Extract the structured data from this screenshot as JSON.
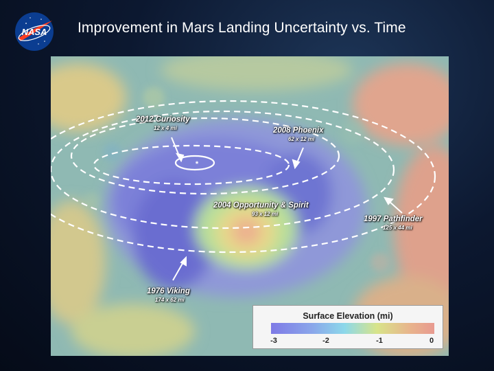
{
  "title": "Improvement in Mars Landing Uncertainty vs. Time",
  "logo": {
    "text": "NASA",
    "icon": "nasa-meatball-logo"
  },
  "landings": [
    {
      "name": "2012 Curiosity",
      "dims": "12 x 4 mi"
    },
    {
      "name": "2008 Phoenix",
      "dims": "62 x 12 mi"
    },
    {
      "name": "2004 Opportunity & Spirit",
      "dims": "93 x 12 mi"
    },
    {
      "name": "1997 Pathfinder",
      "dims": "125 x 44 mi"
    },
    {
      "name": "1976 Viking",
      "dims": "174 x 62 mi"
    }
  ],
  "legend": {
    "title": "Surface Elevation (mi)",
    "ticks": [
      "-3",
      "-2",
      "-1",
      "0"
    ]
  },
  "colors": {
    "low": "#7e7ae6",
    "high": "#e89a90",
    "ellipse": "#ffffff"
  }
}
